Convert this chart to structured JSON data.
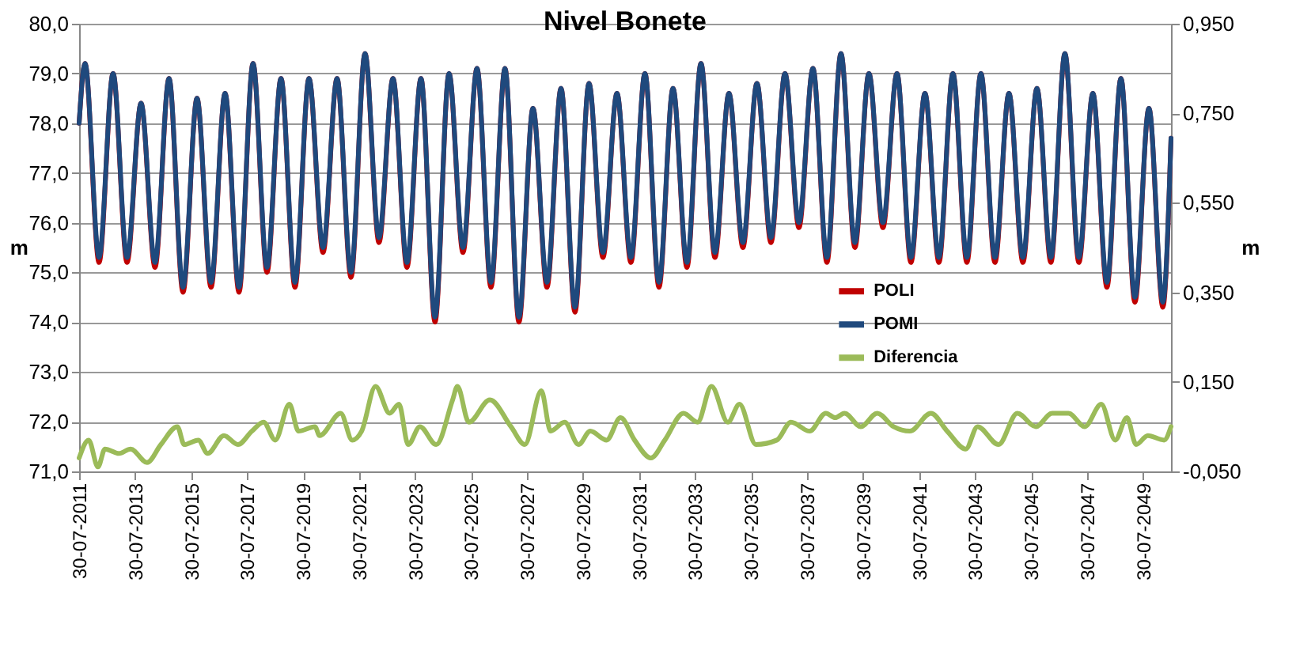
{
  "chart_data": {
    "type": "line",
    "title": "Nivel Bonete",
    "ylabel": "m",
    "y2label": "m",
    "x": [
      "2011-07-30",
      "2011-10-15",
      "2012-04-15",
      "2012-10-15",
      "2013-04-15",
      "2013-10-15",
      "2014-04-15",
      "2014-10-15",
      "2015-04-15",
      "2015-10-15",
      "2016-04-15",
      "2016-10-15",
      "2017-04-15",
      "2017-10-15",
      "2018-04-15",
      "2018-10-15",
      "2019-04-15",
      "2019-10-15",
      "2020-04-15",
      "2020-10-15",
      "2021-04-15",
      "2021-10-15",
      "2022-04-15",
      "2022-10-15",
      "2023-04-15",
      "2023-10-15",
      "2024-04-15",
      "2024-10-15",
      "2025-04-15",
      "2025-10-15",
      "2026-04-15",
      "2026-10-15",
      "2027-04-15",
      "2027-10-15",
      "2028-04-15",
      "2028-10-15",
      "2029-04-15",
      "2029-10-15",
      "2030-04-15",
      "2030-10-15",
      "2031-04-15",
      "2031-10-15",
      "2032-04-15",
      "2032-10-15",
      "2033-04-15",
      "2033-10-15",
      "2034-04-15",
      "2034-10-15",
      "2035-04-15",
      "2035-10-15",
      "2036-04-15",
      "2036-10-15",
      "2037-04-15",
      "2037-10-15",
      "2038-04-15",
      "2038-10-15",
      "2039-04-15",
      "2039-10-15",
      "2040-04-15",
      "2040-10-15",
      "2041-04-15",
      "2041-10-15",
      "2042-04-15",
      "2042-10-15",
      "2043-04-15",
      "2043-10-15",
      "2044-04-15",
      "2044-10-15",
      "2045-04-15",
      "2045-10-15",
      "2046-04-15",
      "2046-10-15",
      "2047-04-15",
      "2047-10-15",
      "2048-04-15",
      "2048-10-15",
      "2049-04-15",
      "2049-10-15",
      "2050-04-15",
      "2050-07-30"
    ],
    "series": [
      {
        "name": "POLI",
        "color": "#c00000",
        "values": [
          78.0,
          79.2,
          75.2,
          79.0,
          75.2,
          78.4,
          75.1,
          78.9,
          74.6,
          78.5,
          74.7,
          78.6,
          74.6,
          79.2,
          75.0,
          78.9,
          74.7,
          78.9,
          75.4,
          78.9,
          74.9,
          79.4,
          75.6,
          78.9,
          75.1,
          78.9,
          74.0,
          79.0,
          75.4,
          79.1,
          74.7,
          79.1,
          74.0,
          78.3,
          74.7,
          78.7,
          74.2,
          78.8,
          75.3,
          78.6,
          75.2,
          79.0,
          74.7,
          78.7,
          75.1,
          79.2,
          75.3,
          78.6,
          75.5,
          78.8,
          75.6,
          79.0,
          75.9,
          79.1,
          75.2,
          79.4,
          75.5,
          79.0,
          75.9,
          79.0,
          75.2,
          78.6,
          75.2,
          79.0,
          75.2,
          79.0,
          75.2,
          78.6,
          75.2,
          78.7,
          75.2,
          79.4,
          75.2,
          78.6,
          74.7,
          78.9,
          74.4,
          78.3,
          74.3,
          77.7
        ]
      },
      {
        "name": "POMI",
        "color": "#1f497d",
        "values": [
          78.0,
          79.2,
          75.3,
          79.0,
          75.3,
          78.4,
          75.2,
          78.9,
          74.7,
          78.5,
          74.8,
          78.6,
          74.7,
          79.2,
          75.1,
          78.9,
          74.8,
          78.9,
          75.5,
          78.9,
          75.0,
          79.4,
          75.7,
          78.9,
          75.2,
          78.9,
          74.1,
          79.0,
          75.5,
          79.1,
          74.8,
          79.1,
          74.1,
          78.3,
          74.8,
          78.7,
          74.3,
          78.8,
          75.4,
          78.6,
          75.3,
          79.0,
          74.8,
          78.7,
          75.2,
          79.2,
          75.4,
          78.6,
          75.6,
          78.8,
          75.7,
          79.0,
          76.0,
          79.1,
          75.3,
          79.4,
          75.6,
          79.0,
          76.0,
          79.0,
          75.3,
          78.6,
          75.3,
          79.0,
          75.3,
          79.0,
          75.3,
          78.6,
          75.3,
          78.7,
          75.3,
          79.4,
          75.3,
          78.6,
          74.8,
          78.9,
          74.5,
          78.3,
          74.4,
          77.7
        ]
      },
      {
        "name": "Diferencia",
        "color": "#9bbb59",
        "axis": "y2",
        "x": [
          "2011-07-30",
          "2011-12",
          "2012-04",
          "2012-07",
          "2013-01",
          "2013-06",
          "2014-01",
          "2014-07",
          "2015-02",
          "2015-05",
          "2015-11",
          "2016-03",
          "2016-10",
          "2017-04",
          "2017-10",
          "2018-03",
          "2018-08",
          "2019-02",
          "2019-06",
          "2020-01",
          "2020-03",
          "2020-12",
          "2021-05",
          "2021-09",
          "2022-03",
          "2022-09",
          "2023-01",
          "2023-05",
          "2023-10",
          "2024-05",
          "2024-12",
          "2025-02",
          "2025-07",
          "2026-04",
          "2027-01",
          "2027-07",
          "2028-02",
          "2028-06",
          "2028-12",
          "2029-06",
          "2029-11",
          "2030-06",
          "2030-12",
          "2031-06",
          "2032-01",
          "2032-07",
          "2033-03",
          "2033-09",
          "2034-03",
          "2034-10",
          "2035-03",
          "2035-10",
          "2036-07",
          "2037-01",
          "2037-09",
          "2038-04",
          "2038-08",
          "2038-12",
          "2039-07",
          "2040-02",
          "2040-09",
          "2041-04",
          "2042-01",
          "2042-08",
          "2043-04",
          "2043-09",
          "2044-06",
          "2045-02",
          "2045-10",
          "2046-05",
          "2046-12",
          "2047-07",
          "2048-02",
          "2048-08",
          "2049-01",
          "2049-05",
          "2049-10",
          "2050-05",
          "2050-07-30"
        ],
        "values": [
          -0.02,
          0.02,
          -0.04,
          0.0,
          -0.01,
          0.0,
          -0.03,
          0.01,
          0.05,
          0.01,
          0.02,
          -0.01,
          0.03,
          0.01,
          0.04,
          0.06,
          0.02,
          0.1,
          0.04,
          0.05,
          0.03,
          0.08,
          0.02,
          0.04,
          0.14,
          0.08,
          0.1,
          0.01,
          0.05,
          0.01,
          0.11,
          0.14,
          0.06,
          0.11,
          0.05,
          0.01,
          0.13,
          0.04,
          0.06,
          0.01,
          0.04,
          0.02,
          0.07,
          0.02,
          -0.02,
          0.02,
          0.08,
          0.06,
          0.14,
          0.06,
          0.1,
          0.01,
          0.02,
          0.06,
          0.04,
          0.08,
          0.07,
          0.08,
          0.05,
          0.08,
          0.05,
          0.04,
          0.08,
          0.04,
          0.0,
          0.05,
          0.01,
          0.08,
          0.05,
          0.08,
          0.08,
          0.05,
          0.1,
          0.02,
          0.07,
          0.01,
          0.03,
          0.02,
          0.05
        ]
      }
    ],
    "xlim": [
      "2011-07-30",
      "2050-07-30"
    ],
    "xticks": [
      {
        "value": "2011-07-30",
        "label": "30-07-2011"
      },
      {
        "value": "2013-07-30",
        "label": "30-07-2013"
      },
      {
        "value": "2015-07-30",
        "label": "30-07-2015"
      },
      {
        "value": "2017-07-30",
        "label": "30-07-2017"
      },
      {
        "value": "2019-07-30",
        "label": "30-07-2019"
      },
      {
        "value": "2021-07-30",
        "label": "30-07-2021"
      },
      {
        "value": "2023-07-30",
        "label": "30-07-2023"
      },
      {
        "value": "2025-07-30",
        "label": "30-07-2025"
      },
      {
        "value": "2027-07-30",
        "label": "30-07-2027"
      },
      {
        "value": "2029-07-30",
        "label": "30-07-2029"
      },
      {
        "value": "2031-07-30",
        "label": "30-07-2031"
      },
      {
        "value": "2033-07-30",
        "label": "30-07-2033"
      },
      {
        "value": "2035-07-30",
        "label": "30-07-2035"
      },
      {
        "value": "2037-07-30",
        "label": "30-07-2037"
      },
      {
        "value": "2039-07-30",
        "label": "30-07-2039"
      },
      {
        "value": "2041-07-30",
        "label": "30-07-2041"
      },
      {
        "value": "2043-07-30",
        "label": "30-07-2043"
      },
      {
        "value": "2045-07-30",
        "label": "30-07-2045"
      },
      {
        "value": "2047-07-30",
        "label": "30-07-2047"
      },
      {
        "value": "2049-07-30",
        "label": "30-07-2049"
      }
    ],
    "ylim": [
      71,
      80
    ],
    "yticks": [
      {
        "value": 71,
        "label": "71,0"
      },
      {
        "value": 72,
        "label": "72,0"
      },
      {
        "value": 73,
        "label": "73,0"
      },
      {
        "value": 74,
        "label": "74,0"
      },
      {
        "value": 75,
        "label": "75,0"
      },
      {
        "value": 76,
        "label": "76,0"
      },
      {
        "value": 77,
        "label": "77,0"
      },
      {
        "value": 78,
        "label": "78,0"
      },
      {
        "value": 79,
        "label": "79,0"
      },
      {
        "value": 80,
        "label": "80,0"
      }
    ],
    "y2lim": [
      -0.05,
      0.95
    ],
    "y2ticks": [
      {
        "value": -0.05,
        "label": "-0,050"
      },
      {
        "value": 0.15,
        "label": "0,150"
      },
      {
        "value": 0.35,
        "label": "0,350"
      },
      {
        "value": 0.55,
        "label": "0,550"
      },
      {
        "value": 0.75,
        "label": "0,750"
      },
      {
        "value": 0.95,
        "label": "0,950"
      }
    ],
    "grid": "y",
    "legend": "right",
    "marker": "none",
    "line_style": "solid"
  }
}
